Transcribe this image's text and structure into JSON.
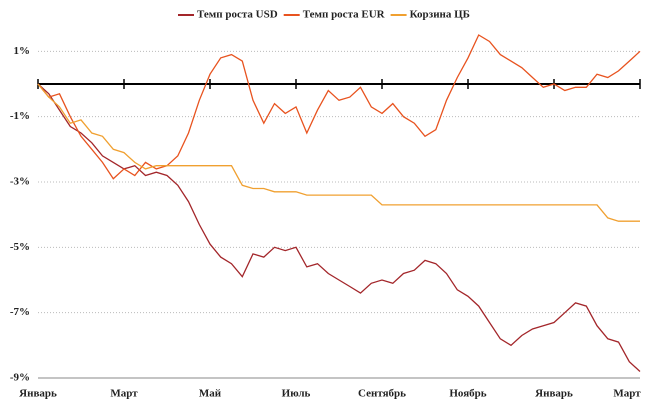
{
  "chart_data": {
    "type": "line",
    "x": [
      0,
      0.25,
      0.5,
      0.75,
      1,
      1.25,
      1.5,
      1.75,
      2,
      2.25,
      2.5,
      2.75,
      3,
      3.25,
      3.5,
      3.75,
      4,
      4.25,
      4.5,
      4.75,
      5,
      5.25,
      5.5,
      5.75,
      6,
      6.25,
      6.5,
      6.75,
      7,
      7.25,
      7.5,
      7.75,
      8,
      8.25,
      8.5,
      8.75,
      9,
      9.25,
      9.5,
      9.75,
      10,
      10.25,
      10.5,
      10.75,
      11,
      11.25,
      11.5,
      11.75,
      12,
      12.25,
      12.5,
      12.75,
      13,
      13.25,
      13.5,
      13.75,
      14
    ],
    "series": [
      {
        "name": "Темп роста USD",
        "color": "#a3262a",
        "values": [
          0,
          -0.3,
          -0.8,
          -1.3,
          -1.5,
          -1.8,
          -2.2,
          -2.4,
          -2.6,
          -2.5,
          -2.8,
          -2.7,
          -2.8,
          -3.1,
          -3.6,
          -4.3,
          -4.9,
          -5.3,
          -5.5,
          -5.9,
          -5.2,
          -5.3,
          -5.0,
          -5.1,
          -5.0,
          -5.6,
          -5.5,
          -5.8,
          -6.0,
          -6.2,
          -6.4,
          -6.1,
          -6.0,
          -6.1,
          -5.8,
          -5.7,
          -5.4,
          -5.5,
          -5.8,
          -6.3,
          -6.5,
          -6.8,
          -7.3,
          -7.8,
          -8.0,
          -7.7,
          -7.5,
          -7.4,
          -7.3,
          -7.0,
          -6.7,
          -6.8,
          -7.4,
          -7.8,
          -7.9,
          -8.5,
          -8.8
        ]
      },
      {
        "name": "Темп роста EUR",
        "color": "#e8531f",
        "values": [
          0,
          -0.4,
          -0.3,
          -1.0,
          -1.6,
          -2.0,
          -2.4,
          -2.9,
          -2.6,
          -2.8,
          -2.4,
          -2.6,
          -2.5,
          -2.2,
          -1.5,
          -0.5,
          0.3,
          0.8,
          0.9,
          0.7,
          -0.5,
          -1.2,
          -0.6,
          -0.9,
          -0.7,
          -1.5,
          -0.8,
          -0.2,
          -0.5,
          -0.4,
          -0.1,
          -0.7,
          -0.9,
          -0.6,
          -1.0,
          -1.2,
          -1.6,
          -1.4,
          -0.5,
          0.2,
          0.8,
          1.5,
          1.3,
          0.9,
          0.7,
          0.5,
          0.2,
          -0.1,
          0.0,
          -0.2,
          -0.1,
          -0.1,
          0.3,
          0.2,
          0.4,
          0.7,
          1.0
        ]
      },
      {
        "name": "Корзина ЦБ",
        "color": "#f0a030",
        "values": [
          0,
          -0.4,
          -0.7,
          -1.2,
          -1.1,
          -1.5,
          -1.6,
          -2.0,
          -2.1,
          -2.4,
          -2.6,
          -2.5,
          -2.5,
          -2.5,
          -2.5,
          -2.5,
          -2.5,
          -2.5,
          -2.5,
          -3.1,
          -3.2,
          -3.2,
          -3.3,
          -3.3,
          -3.3,
          -3.4,
          -3.4,
          -3.4,
          -3.4,
          -3.4,
          -3.4,
          -3.4,
          -3.7,
          -3.7,
          -3.7,
          -3.7,
          -3.7,
          -3.7,
          -3.7,
          -3.7,
          -3.7,
          -3.7,
          -3.7,
          -3.7,
          -3.7,
          -3.7,
          -3.7,
          -3.7,
          -3.7,
          -3.7,
          -3.7,
          -3.7,
          -3.7,
          -4.1,
          -4.2,
          -4.2,
          -4.2
        ]
      }
    ],
    "xlim": [
      0,
      14
    ],
    "xticks": [
      {
        "value": 0,
        "label": "Январь"
      },
      {
        "value": 2,
        "label": "Март"
      },
      {
        "value": 4,
        "label": "Май"
      },
      {
        "value": 6,
        "label": "Июль"
      },
      {
        "value": 8,
        "label": "Сентябрь"
      },
      {
        "value": 10,
        "label": "Ноябрь"
      },
      {
        "value": 12,
        "label": "Январь"
      },
      {
        "value": 14,
        "label": "Март"
      }
    ],
    "ylim": [
      -9,
      1.5
    ],
    "yticks": [
      {
        "value": 1,
        "label": "1%"
      },
      {
        "value": -1,
        "label": "-1%"
      },
      {
        "value": -3,
        "label": "-3%"
      },
      {
        "value": -5,
        "label": "-5%"
      },
      {
        "value": -7,
        "label": "-7%"
      },
      {
        "value": -9,
        "label": "-9%"
      }
    ],
    "grid": true,
    "legend": "top"
  }
}
